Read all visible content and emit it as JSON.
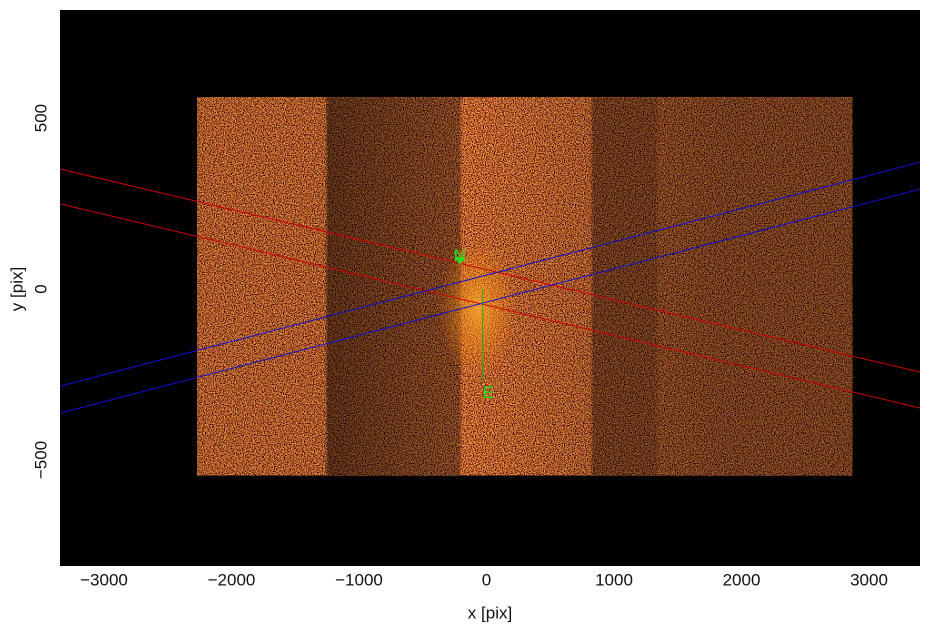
{
  "chart_data": {
    "type": "image",
    "xlabel": "x [pix]",
    "ylabel": "y [pix]",
    "xlim": [
      -3345,
      3400
    ],
    "ylim": [
      -810,
      816
    ],
    "xticks": [
      {
        "value": -3000,
        "label": "−3000"
      },
      {
        "value": -2000,
        "label": "−2000"
      },
      {
        "value": -1000,
        "label": "−1000"
      },
      0,
      1000,
      2000,
      3000
    ],
    "yticks": [
      {
        "value": -500,
        "label": "−500"
      },
      0,
      500
    ],
    "grid": false,
    "background": "#000000",
    "image_extent": {
      "x": [
        -2270,
        2870
      ],
      "y": [
        -544,
        561
      ]
    },
    "series": [
      {
        "color": "#d00000",
        "x": [
          -3345,
          3400
        ],
        "y": [
          351,
          -243
        ]
      },
      {
        "color": "#d00000",
        "x": [
          -3345,
          3400
        ],
        "y": [
          249,
          -348
        ]
      },
      {
        "color": "#1010d0",
        "x": [
          -3345,
          3400
        ],
        "y": [
          -284,
          371
        ]
      },
      {
        "color": "#1010d0",
        "x": [
          -3345,
          3400
        ],
        "y": [
          -363,
          292
        ]
      }
    ],
    "annotations": [
      {
        "text": "N",
        "x": -210,
        "y": 95,
        "color": "#22dd22"
      },
      {
        "text": "E",
        "x": 15,
        "y": -305,
        "color": "#22dd22"
      }
    ]
  }
}
